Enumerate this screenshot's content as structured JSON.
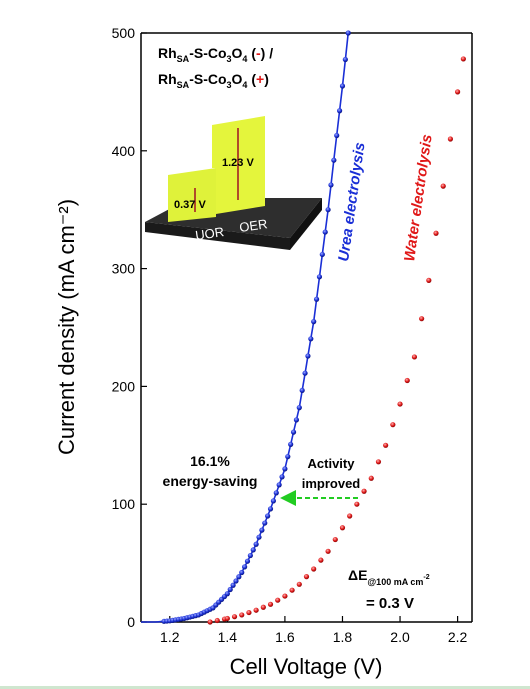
{
  "chart_data": {
    "type": "scatter",
    "xlabel": "Cell Voltage (V)",
    "ylabel": "Current density (mA cm⁻²)",
    "xlim": [
      1.1,
      2.25
    ],
    "ylim": [
      0,
      500
    ],
    "x_ticks": [
      "1.2",
      "1.4",
      "1.6",
      "1.8",
      "2.0",
      "2.2"
    ],
    "y_ticks": [
      "0",
      "100",
      "200",
      "300",
      "400",
      "500"
    ],
    "grid": false,
    "series": [
      {
        "name": "Urea electrolysis",
        "marker": "line+dots",
        "color": "#1a2fd6",
        "x": [
          1.1,
          1.15,
          1.2,
          1.25,
          1.3,
          1.35,
          1.4,
          1.45,
          1.5,
          1.55,
          1.6,
          1.65,
          1.7,
          1.75,
          1.8,
          1.82
        ],
        "y": [
          0,
          0,
          1,
          3,
          6,
          12,
          24,
          42,
          66,
          96,
          130,
          182,
          255,
          350,
          455,
          500
        ]
      },
      {
        "name": "Water electrolysis",
        "marker": "dots",
        "color": "#e01818",
        "x": [
          1.34,
          1.4,
          1.45,
          1.5,
          1.55,
          1.6,
          1.65,
          1.7,
          1.75,
          1.8,
          1.85,
          1.9,
          1.95,
          2.0,
          2.05,
          2.1,
          2.15,
          2.2,
          2.22
        ],
        "y": [
          0,
          3,
          6,
          10,
          15,
          22,
          32,
          45,
          60,
          80,
          100,
          122,
          150,
          185,
          225,
          290,
          370,
          450,
          478
        ]
      }
    ],
    "annotations": {
      "legend_line1": {
        "pre": "Rh",
        "sub1": "SA",
        "mid": "-S-Co",
        "sub2": "3",
        "post": "O",
        "sub3": "4",
        "sym_open": " (",
        "sym": "-",
        "sym_close": ") /"
      },
      "legend_line2": {
        "pre": "Rh",
        "sub1": "SA",
        "mid": "-S-Co",
        "sub2": "3",
        "post": "O",
        "sub3": "4",
        "sym_open": " (",
        "sym": "+",
        "sym_close": ")"
      },
      "urea_label": "Urea electrolysis",
      "water_label": "Water electrolysis",
      "saving_line1": "16.1%",
      "saving_line2": "energy-saving",
      "activity_line1": "Activity",
      "activity_line2": "improved",
      "delta_main": "ΔE",
      "delta_sub": "@100 mA cm",
      "delta_sup": "-2",
      "delta_value": "= 0.3 V",
      "inset_uor": "UOR",
      "inset_oer": "OER",
      "inset_uor_value": "0.37 V",
      "inset_oer_value": "1.23 V"
    },
    "colors": {
      "urea": "#1a2fd6",
      "water": "#e01818",
      "arrow": "#22cc22",
      "inset_bar": "#dff23a",
      "inset_base": "#3a3a3a"
    }
  }
}
